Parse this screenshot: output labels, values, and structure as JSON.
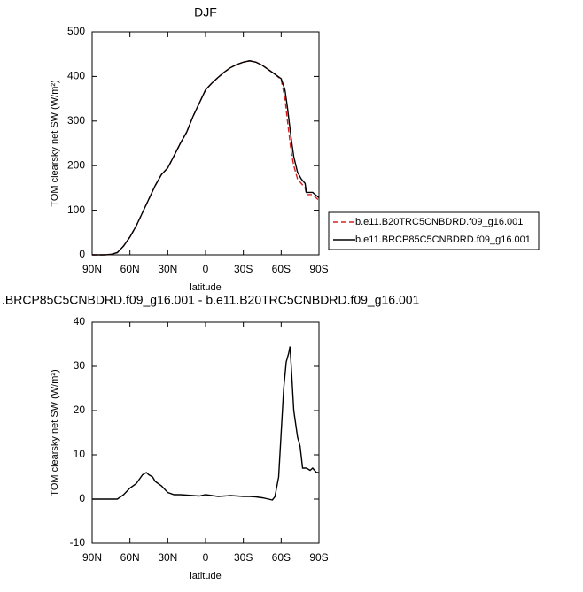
{
  "chart_data": [
    {
      "type": "line",
      "title": "DJF",
      "x_label": "latitude",
      "y_label": "TOM clearsky net SW (W/m²)",
      "xlim": [
        90,
        -90
      ],
      "xticks": [
        {
          "value": 90,
          "label": "90N"
        },
        {
          "value": 60,
          "label": "60N"
        },
        {
          "value": 30,
          "label": "30N"
        },
        {
          "value": 0,
          "label": "0"
        },
        {
          "value": -30,
          "label": "30S"
        },
        {
          "value": -60,
          "label": "60S"
        },
        {
          "value": -90,
          "label": "90S"
        }
      ],
      "ylim": [
        0,
        500
      ],
      "yticks": [
        0,
        100,
        200,
        300,
        400,
        500
      ],
      "x": [
        90,
        85,
        80,
        75,
        70,
        65,
        60,
        55,
        50,
        45,
        40,
        35,
        30,
        25,
        20,
        15,
        10,
        5,
        0,
        -5,
        -10,
        -15,
        -20,
        -25,
        -30,
        -35,
        -40,
        -45,
        -50,
        -55,
        -60,
        -63,
        -65,
        -68,
        -70,
        -73,
        -76,
        -79,
        -80,
        -85,
        -90
      ],
      "series": [
        {
          "name": "b.e11.B20TRC5CNBDRD.f09_g16.001",
          "color": "#d62020",
          "dashed": true,
          "values": [
            0,
            0,
            0,
            1,
            5,
            20,
            40,
            65,
            95,
            125,
            155,
            180,
            195,
            222,
            250,
            275,
            310,
            340,
            370,
            385,
            398,
            410,
            420,
            427,
            432,
            435,
            432,
            425,
            415,
            405,
            393,
            350,
            300,
            230,
            200,
            170,
            160,
            150,
            135,
            135,
            122
          ]
        },
        {
          "name": "b.e11.BRCP85C5CNBDRD.f09_g16.001",
          "color": "#000000",
          "dashed": false,
          "values": [
            0,
            0,
            0,
            1,
            5,
            20,
            40,
            65,
            95,
            125,
            155,
            180,
            195,
            222,
            250,
            275,
            310,
            340,
            370,
            385,
            398,
            410,
            420,
            427,
            432,
            435,
            432,
            425,
            415,
            405,
            395,
            370,
            330,
            260,
            220,
            185,
            170,
            160,
            140,
            140,
            128
          ]
        }
      ]
    },
    {
      "type": "line",
      "title": ".BRCP85C5CNBDRD.f09_g16.001 - b.e11.B20TRC5CNBDRD.f09_g16.001",
      "x_label": "latitude",
      "y_label": "TOM clearsky net SW (W/m²)",
      "xlim": [
        90,
        -90
      ],
      "xticks": [
        {
          "value": 90,
          "label": "90N"
        },
        {
          "value": 60,
          "label": "60N"
        },
        {
          "value": 30,
          "label": "30N"
        },
        {
          "value": 0,
          "label": "0"
        },
        {
          "value": -30,
          "label": "30S"
        },
        {
          "value": -60,
          "label": "60S"
        },
        {
          "value": -90,
          "label": "90S"
        }
      ],
      "ylim": [
        -10,
        40
      ],
      "yticks": [
        -10,
        0,
        10,
        20,
        30,
        40
      ],
      "x": [
        90,
        80,
        70,
        65,
        60,
        55,
        50,
        47,
        45,
        42,
        40,
        35,
        30,
        25,
        20,
        15,
        10,
        5,
        0,
        -5,
        -10,
        -15,
        -20,
        -25,
        -30,
        -35,
        -40,
        -45,
        -50,
        -53,
        -55,
        -58,
        -60,
        -62,
        -64,
        -66,
        -67,
        -68,
        -70,
        -73,
        -75,
        -77,
        -80,
        -83,
        -85,
        -88,
        -90
      ],
      "series": [
        {
          "color": "#000000",
          "dashed": false,
          "values": [
            0,
            0,
            0,
            1,
            2.5,
            3.5,
            5.5,
            6,
            5.5,
            5,
            4,
            3,
            1.5,
            1,
            1,
            0.9,
            0.8,
            0.7,
            1,
            0.8,
            0.6,
            0.7,
            0.8,
            0.7,
            0.6,
            0.6,
            0.5,
            0.3,
            0,
            -0.2,
            0.5,
            5,
            15,
            25,
            31,
            33,
            34.5,
            30,
            20,
            14,
            12,
            7,
            7,
            6.5,
            7,
            6,
            6
          ]
        }
      ]
    }
  ]
}
